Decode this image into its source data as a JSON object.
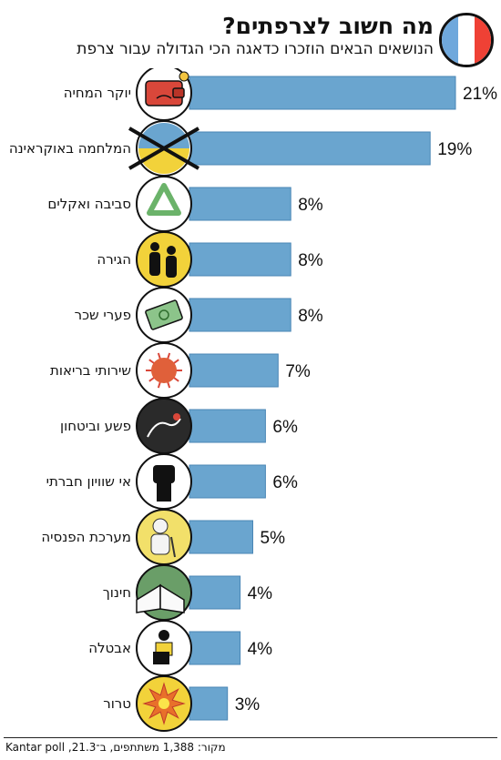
{
  "header": {
    "title": "מה חשוב לצרפתים?",
    "subtitle": "הנושאים הבאים הוזכרו כדאגה הכי הגדולה עבור צרפת",
    "flag_colors": [
      "#ef4135",
      "#ffffff",
      "#6fa8dc"
    ]
  },
  "footer": {
    "source": "מקור: 1,388 משתתפים, ב־21.3, Kantar poll"
  },
  "colors": {
    "bar": "#6aa5cf",
    "bar_stroke": "#4a86b5"
  },
  "chart_data": {
    "type": "bar",
    "orientation": "horizontal",
    "title": "מה חשוב לצרפתים?",
    "subtitle": "הנושאים הבאים הוזכרו כדאגה הכי הגדולה עבור צרפת",
    "unit": "%",
    "grid": false,
    "categories": [
      "יוקר המחיה",
      "המלחמה באוקראינה",
      "סביבה ואקלים",
      "הגירה",
      "פערי שכר",
      "שירותי בריאות",
      "פשע וביטחון",
      "אי שוויון חברתי",
      "מערכת הפנסיה",
      "חינוך",
      "אבטלה",
      "טרור"
    ],
    "values": [
      21,
      19,
      8,
      8,
      8,
      7,
      6,
      6,
      5,
      4,
      4,
      3
    ],
    "value_labels": [
      "21%",
      "19%",
      "8%",
      "8%",
      "8%",
      "7%",
      "6%",
      "6%",
      "5%",
      "4%",
      "4%",
      "3%"
    ],
    "icons": [
      "wallet-icon",
      "ukraine-war-icon",
      "recycle-icon",
      "migration-icon",
      "money-icon",
      "virus-icon",
      "crime-scene-icon",
      "fist-icon",
      "pensioner-icon",
      "book-icon",
      "unemployed-icon",
      "explosion-icon"
    ],
    "icon_backgrounds": [
      "#ffffff",
      "#ffffff",
      "#ffffff",
      "#f2d23a",
      "#ffffff",
      "#ffffff",
      "#2a2a2a",
      "#ffffff",
      "#f2e06a",
      "#6a9e68",
      "#ffffff",
      "#f2d23a"
    ]
  }
}
